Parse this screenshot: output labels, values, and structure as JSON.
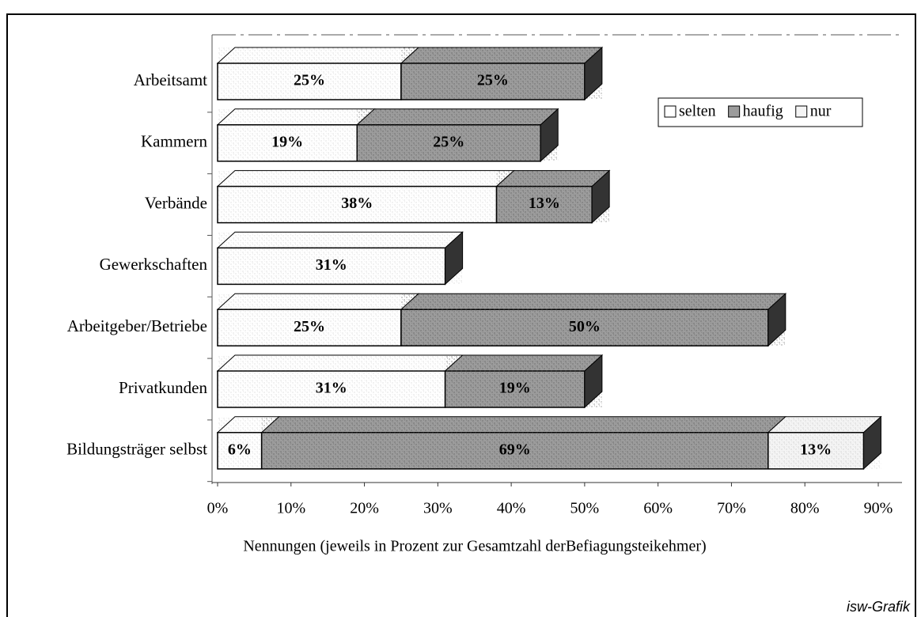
{
  "chart_data": {
    "type": "stacked-bar-3d",
    "orientation": "horizontal",
    "categories": [
      "Arbeitsamt",
      "Kammern",
      "Verbände",
      "Gewerkschaften",
      "Arbeitgeber/Betriebe",
      "Privatkunden",
      "Bildungsträger selbst"
    ],
    "series": [
      {
        "name": "selten",
        "color": "#ffffff",
        "values": [
          25,
          19,
          38,
          31,
          25,
          31,
          6
        ],
        "value_labels": [
          "25%",
          "19%",
          "38%",
          "31%",
          "25%",
          "31%",
          "6%"
        ]
      },
      {
        "name": "haufig",
        "color": "#9c9c9c",
        "values": [
          25,
          25,
          13,
          null,
          50,
          19,
          69
        ],
        "value_labels": [
          "25%",
          "25%",
          "13%",
          null,
          "50%",
          "19%",
          "69%"
        ]
      },
      {
        "name": "nur",
        "color": "#f4f4f4",
        "values": [
          null,
          null,
          null,
          null,
          null,
          null,
          13
        ],
        "value_labels": [
          null,
          null,
          null,
          null,
          null,
          null,
          "13%"
        ]
      }
    ],
    "xlim": [
      0,
      90
    ],
    "xticks": [
      {
        "value": 0,
        "label": "0%"
      },
      {
        "value": 10,
        "label": "10%"
      },
      {
        "value": 20,
        "label": "20%"
      },
      {
        "value": 30,
        "label": "30%"
      },
      {
        "value": 40,
        "label": "40%"
      },
      {
        "value": 50,
        "label": "50%"
      },
      {
        "value": 60,
        "label": "60%"
      },
      {
        "value": 70,
        "label": "70%"
      },
      {
        "value": 80,
        "label": "80%"
      },
      {
        "value": 90,
        "label": "90%"
      }
    ],
    "x_label": "Nennungen (jeweils in Prozent zur Gesamtzahl derBefiagungsteikehmer)",
    "legend": "top-right",
    "source": "isw-Grafik"
  }
}
